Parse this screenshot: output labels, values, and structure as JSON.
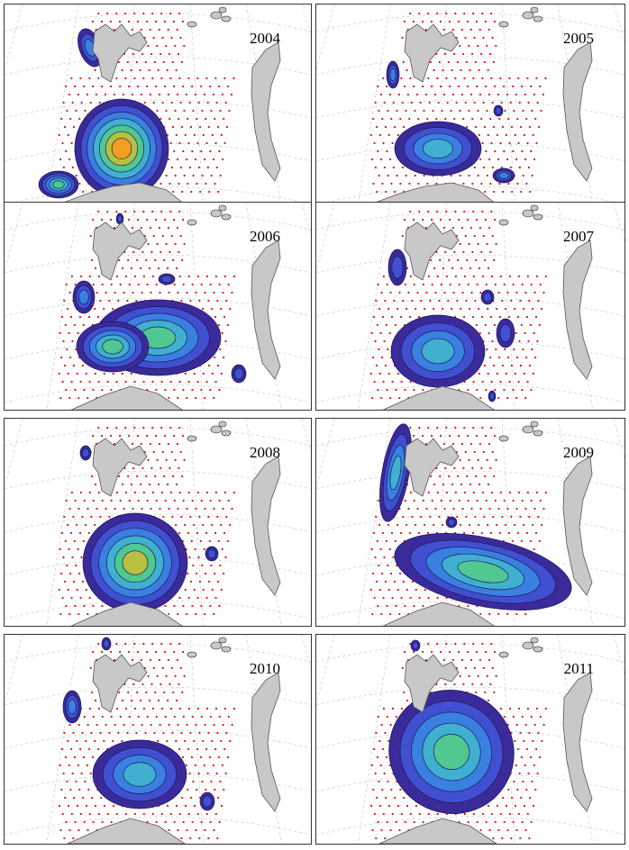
{
  "figure": {
    "panels": [
      {
        "year": "2004"
      },
      {
        "year": "2005"
      },
      {
        "year": "2006"
      },
      {
        "year": "2007"
      },
      {
        "year": "2008"
      },
      {
        "year": "2009"
      },
      {
        "year": "2010"
      },
      {
        "year": "2011"
      }
    ]
  },
  "colors": {
    "land": "#c8c8c8",
    "land_outline": "#555555",
    "station_dots": "#e01010",
    "graticule": "#c8c8c8",
    "contour_levels": [
      "#3a2a9a",
      "#4050d0",
      "#3a80e0",
      "#40b0d0",
      "#50c890",
      "#b8c040",
      "#f0a020"
    ]
  }
}
